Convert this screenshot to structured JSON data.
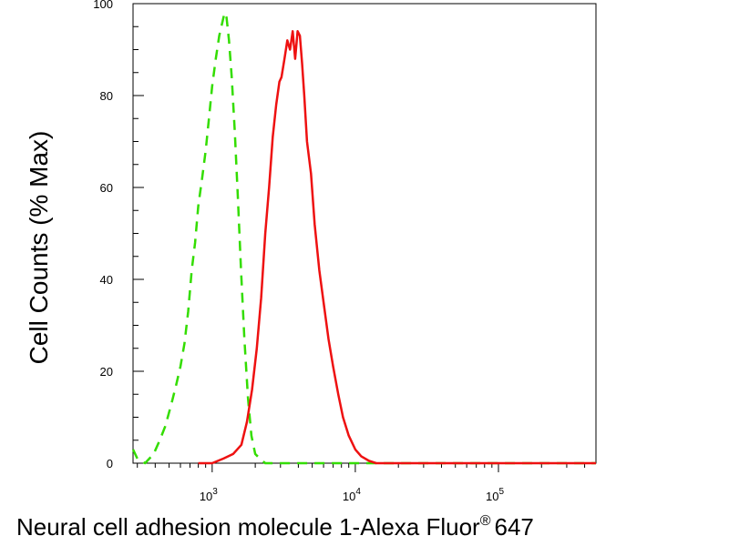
{
  "chart_data": {
    "type": "line",
    "xlabel": "Neural cell adhesion molecule 1-Alexa Fluor",
    "xlabel_registered": "®",
    "xlabel_suffix": "647",
    "ylabel": "Cell Counts (% Max)",
    "x_scale": "log",
    "xlim": [
      280,
      480000
    ],
    "ylim": [
      0,
      100
    ],
    "yticks": [
      0,
      20,
      40,
      60,
      80,
      100
    ],
    "xticks": [
      {
        "value": 1000,
        "base": "10",
        "exp": "3"
      },
      {
        "value": 10000,
        "base": "10",
        "exp": "4"
      },
      {
        "value": 100000,
        "base": "10",
        "exp": "5"
      }
    ],
    "grid": false,
    "legend": "none",
    "series": [
      {
        "color": "#33dd00",
        "dash": true,
        "x": [
          280,
          300,
          340,
          390,
          430,
          470,
          520,
          560,
          600,
          640,
          680,
          720,
          760,
          800,
          850,
          900,
          950,
          1000,
          1060,
          1120,
          1180,
          1220,
          1260,
          1310,
          1370,
          1440,
          1510,
          1590,
          1680,
          1780,
          1880,
          2000,
          2150,
          2350,
          2700,
          3500,
          6000,
          20000,
          100000,
          480000
        ],
        "y": [
          3,
          1,
          0,
          2,
          5,
          8,
          13,
          17,
          21,
          26,
          33,
          42,
          48,
          56,
          62,
          68,
          75,
          82,
          88,
          93,
          96,
          98,
          97,
          92,
          84,
          72,
          58,
          42,
          27,
          14,
          6,
          2,
          1,
          0,
          0,
          0,
          0,
          0,
          0,
          0
        ]
      },
      {
        "color": "#ee1111",
        "dash": false,
        "x": [
          800,
          1000,
          1200,
          1400,
          1600,
          1750,
          1900,
          2050,
          2200,
          2350,
          2500,
          2650,
          2800,
          2950,
          3050,
          3200,
          3350,
          3500,
          3650,
          3800,
          3950,
          4100,
          4250,
          4400,
          4600,
          4900,
          5200,
          5600,
          6000,
          6500,
          7000,
          7600,
          8200,
          9000,
          10000,
          11000,
          12500,
          14000,
          16000,
          20000,
          50000,
          200000,
          480000
        ],
        "y": [
          0,
          0,
          1,
          2,
          4,
          9,
          16,
          25,
          36,
          50,
          60,
          71,
          78,
          83,
          84,
          88,
          92,
          90,
          94,
          88,
          94,
          93,
          87,
          80,
          70,
          63,
          52,
          42,
          35,
          27,
          21,
          15,
          10,
          6,
          3,
          1.5,
          0.5,
          0,
          0,
          0,
          0,
          0,
          0
        ]
      }
    ]
  }
}
